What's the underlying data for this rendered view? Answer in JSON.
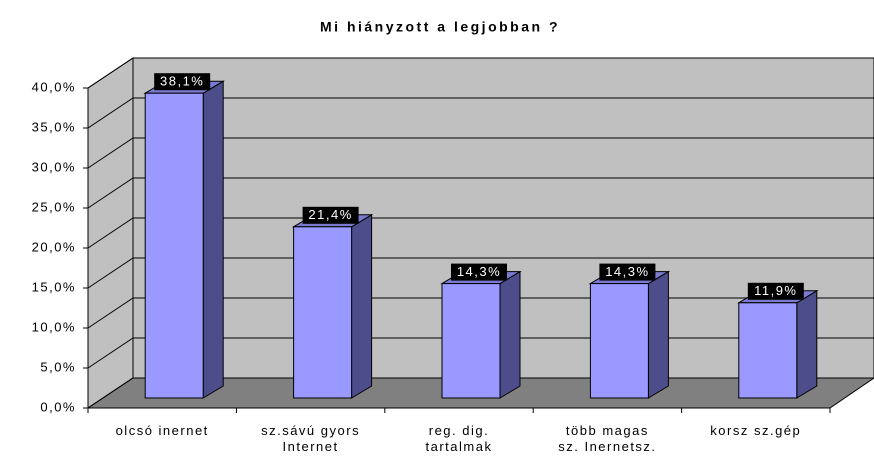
{
  "chart_data": {
    "type": "bar3d",
    "title": "Mi hiányzott a legjobban ?",
    "categories": [
      "olcsó inernet",
      "sz.sávú gyors\nInternet",
      "reg. dig.\ntartalmak",
      "több magas\nsz. Inernetsz.",
      "korsz sz.gép"
    ],
    "values": [
      38.1,
      21.4,
      14.3,
      14.3,
      11.9
    ],
    "value_labels": [
      "38,1%",
      "21,4%",
      "14,3%",
      "14,3%",
      "11,9%"
    ],
    "color": "#9999ff",
    "ylim": [
      0,
      40
    ],
    "yticks": [
      {
        "value": 0,
        "label": "0,0%"
      },
      {
        "value": 5,
        "label": "5,0%"
      },
      {
        "value": 10,
        "label": "10,0%"
      },
      {
        "value": 15,
        "label": "15,0%"
      },
      {
        "value": 20,
        "label": "20,0%"
      },
      {
        "value": 25,
        "label": "25,0%"
      },
      {
        "value": 30,
        "label": "30,0%"
      },
      {
        "value": 35,
        "label": "35,0%"
      },
      {
        "value": 40,
        "label": "40,0%"
      }
    ],
    "grid": true
  }
}
